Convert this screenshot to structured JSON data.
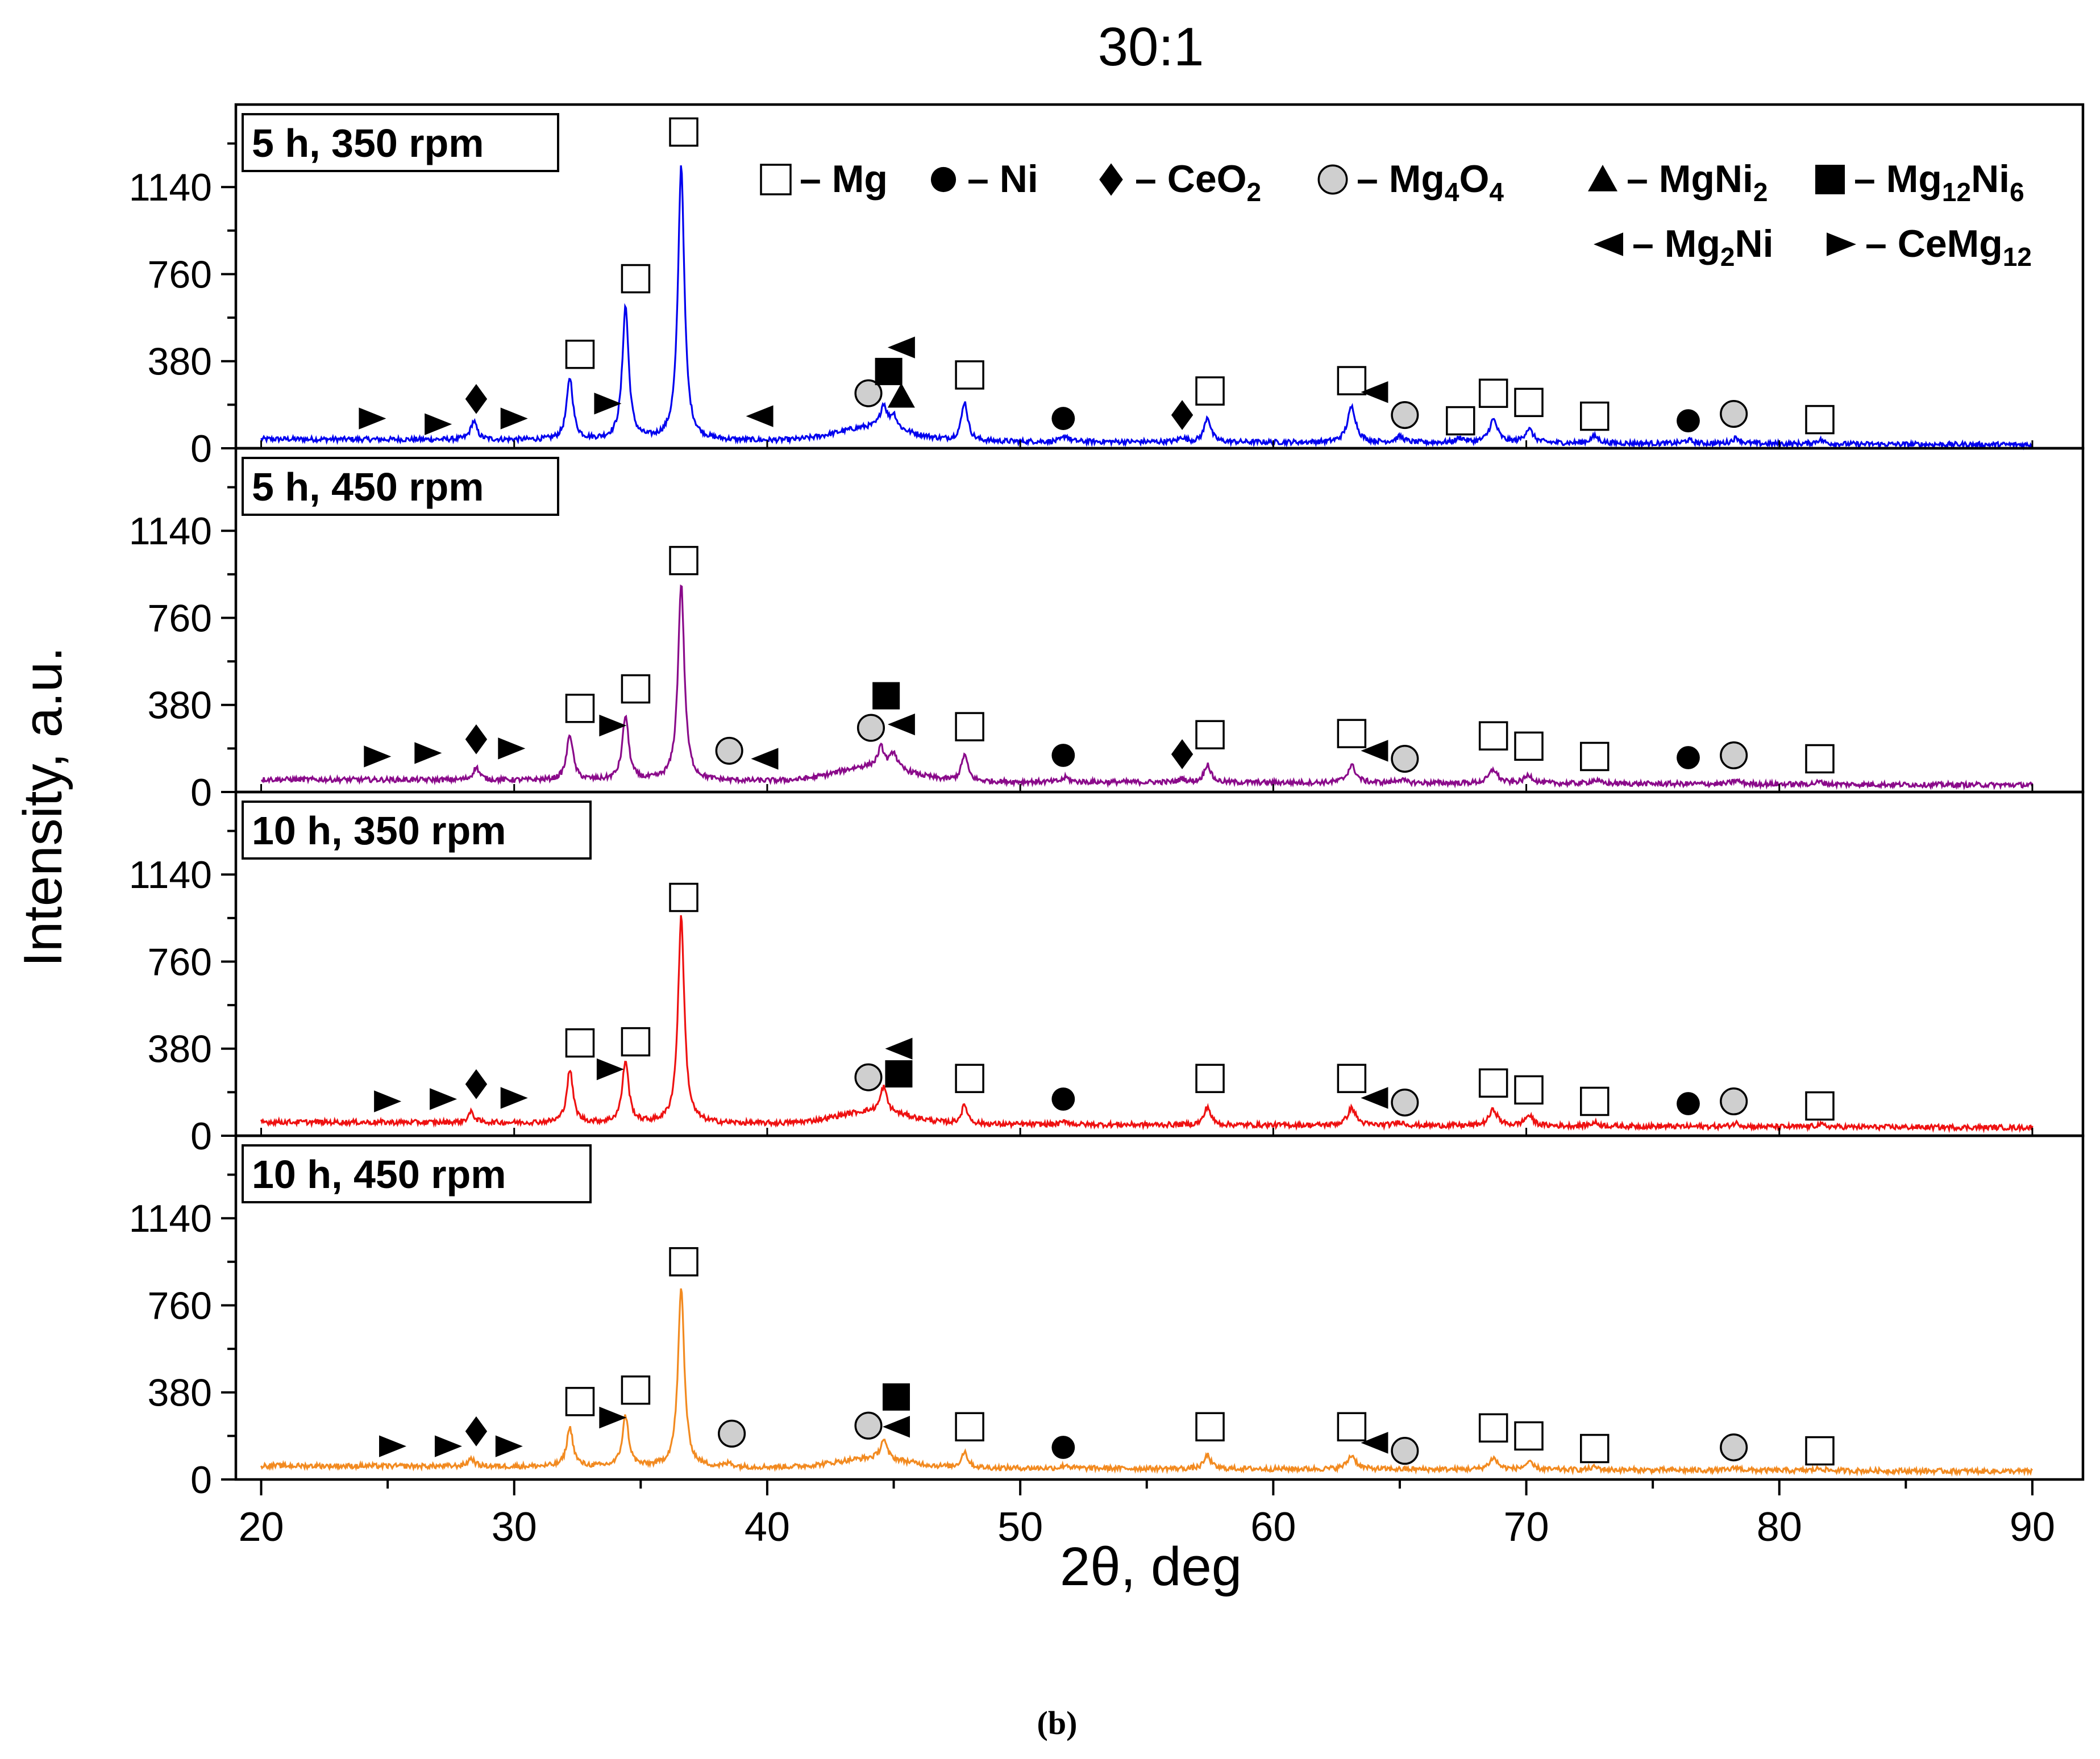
{
  "chart_data": {
    "type": "line",
    "title": "30:1",
    "caption": "(b)",
    "xlabel": "2θ, deg",
    "ylabel": "Intensity, a.u.",
    "xlim": [
      19,
      92
    ],
    "ylim": [
      0,
      1500
    ],
    "x_ticks": [
      20,
      30,
      40,
      50,
      60,
      70,
      80,
      90
    ],
    "y_ticks": [
      0,
      380,
      760,
      1140
    ],
    "legend": {
      "placement": "top-right",
      "row1": [
        {
          "marker": "open-square",
          "label": "– Mg"
        },
        {
          "marker": "circle",
          "label": "– Ni"
        },
        {
          "marker": "diamond",
          "label": "– CeO",
          "sub": "2"
        },
        {
          "marker": "grey-circle",
          "label": "– Mg",
          "sub": "4",
          "label2": "O",
          "sub2": "4"
        },
        {
          "marker": "triangle-up",
          "label": "– MgNi",
          "sub": "2"
        },
        {
          "marker": "square",
          "label": "– Mg",
          "sub": "12",
          "label2": "Ni",
          "sub2": "6"
        }
      ],
      "row2": [
        {
          "marker": "triangle-left",
          "label": "– Mg",
          "sub": "2",
          "label2": "Ni"
        },
        {
          "marker": "triangle-right",
          "label": "– CeMg",
          "sub": "12"
        }
      ]
    },
    "series": [
      {
        "name": "5 h, 350 rpm",
        "color": "#0000ee",
        "baseline": 40,
        "peaks": [
          [
            28.4,
            80
          ],
          [
            32.2,
            270
          ],
          [
            34.4,
            580
          ],
          [
            36.6,
            1200
          ],
          [
            44.6,
            100
          ],
          [
            45.0,
            60
          ],
          [
            47.8,
            170
          ],
          [
            51.8,
            25
          ],
          [
            56.4,
            20
          ],
          [
            57.4,
            110
          ],
          [
            63.1,
            155
          ],
          [
            65.0,
            25
          ],
          [
            67.4,
            20
          ],
          [
            68.7,
            100
          ],
          [
            70.1,
            60
          ],
          [
            72.7,
            30
          ],
          [
            76.4,
            15
          ],
          [
            78.3,
            25
          ],
          [
            81.6,
            18
          ]
        ],
        "bumps": [
          [
            44.2,
            2.0,
            60
          ]
        ],
        "markers": [
          {
            "x": 24.4,
            "y": 130,
            "type": "triangle-right"
          },
          {
            "x": 27.0,
            "y": 105,
            "type": "triangle-right"
          },
          {
            "x": 28.5,
            "y": 215,
            "type": "diamond"
          },
          {
            "x": 30.0,
            "y": 130,
            "type": "triangle-right"
          },
          {
            "x": 32.6,
            "y": 410,
            "type": "open-square"
          },
          {
            "x": 33.7,
            "y": 195,
            "type": "triangle-right"
          },
          {
            "x": 34.8,
            "y": 740,
            "type": "open-square"
          },
          {
            "x": 36.7,
            "y": 1380,
            "type": "open-square"
          },
          {
            "x": 39.7,
            "y": 140,
            "type": "triangle-left"
          },
          {
            "x": 44.0,
            "y": 240,
            "type": "grey-circle"
          },
          {
            "x": 44.8,
            "y": 335,
            "type": "square"
          },
          {
            "x": 45.3,
            "y": 440,
            "type": "triangle-left"
          },
          {
            "x": 45.3,
            "y": 225,
            "type": "triangle-up"
          },
          {
            "x": 48.0,
            "y": 320,
            "type": "open-square"
          },
          {
            "x": 51.7,
            "y": 130,
            "type": "circle"
          },
          {
            "x": 56.4,
            "y": 145,
            "type": "diamond"
          },
          {
            "x": 57.5,
            "y": 250,
            "type": "open-square"
          },
          {
            "x": 63.1,
            "y": 295,
            "type": "open-square"
          },
          {
            "x": 64.0,
            "y": 245,
            "type": "triangle-left"
          },
          {
            "x": 65.2,
            "y": 145,
            "type": "grey-circle"
          },
          {
            "x": 67.4,
            "y": 120,
            "type": "open-square"
          },
          {
            "x": 68.7,
            "y": 240,
            "type": "open-square"
          },
          {
            "x": 70.1,
            "y": 200,
            "type": "open-square"
          },
          {
            "x": 72.7,
            "y": 140,
            "type": "open-square"
          },
          {
            "x": 76.4,
            "y": 120,
            "type": "circle"
          },
          {
            "x": 78.2,
            "y": 150,
            "type": "grey-circle"
          },
          {
            "x": 81.6,
            "y": 125,
            "type": "open-square"
          }
        ]
      },
      {
        "name": "5 h, 450 rpm",
        "color": "#8a0a8a",
        "baseline": 55,
        "peaks": [
          [
            28.5,
            55
          ],
          [
            32.2,
            200
          ],
          [
            34.4,
            280
          ],
          [
            36.6,
            860
          ],
          [
            44.5,
            85
          ],
          [
            45.0,
            70
          ],
          [
            47.8,
            115
          ],
          [
            51.8,
            20
          ],
          [
            56.4,
            15
          ],
          [
            57.4,
            80
          ],
          [
            63.1,
            75
          ],
          [
            65.0,
            15
          ],
          [
            68.7,
            60
          ],
          [
            70.1,
            35
          ],
          [
            72.7,
            15
          ],
          [
            78.3,
            15
          ],
          [
            81.6,
            10
          ]
        ],
        "bumps": [
          [
            44.2,
            2.0,
            65
          ]
        ],
        "markers": [
          {
            "x": 24.6,
            "y": 155,
            "type": "triangle-right"
          },
          {
            "x": 26.6,
            "y": 170,
            "type": "triangle-right"
          },
          {
            "x": 28.5,
            "y": 230,
            "type": "diamond"
          },
          {
            "x": 29.9,
            "y": 190,
            "type": "triangle-right"
          },
          {
            "x": 32.6,
            "y": 365,
            "type": "open-square"
          },
          {
            "x": 33.9,
            "y": 290,
            "type": "triangle-right"
          },
          {
            "x": 34.8,
            "y": 450,
            "type": "open-square"
          },
          {
            "x": 36.7,
            "y": 1010,
            "type": "open-square"
          },
          {
            "x": 38.5,
            "y": 180,
            "type": "grey-circle"
          },
          {
            "x": 39.9,
            "y": 145,
            "type": "triangle-left"
          },
          {
            "x": 44.1,
            "y": 280,
            "type": "grey-circle"
          },
          {
            "x": 44.7,
            "y": 420,
            "type": "square"
          },
          {
            "x": 45.3,
            "y": 295,
            "type": "triangle-left"
          },
          {
            "x": 48.0,
            "y": 285,
            "type": "open-square"
          },
          {
            "x": 51.7,
            "y": 160,
            "type": "circle"
          },
          {
            "x": 56.4,
            "y": 165,
            "type": "diamond"
          },
          {
            "x": 57.5,
            "y": 250,
            "type": "open-square"
          },
          {
            "x": 63.1,
            "y": 255,
            "type": "open-square"
          },
          {
            "x": 64.0,
            "y": 180,
            "type": "triangle-left"
          },
          {
            "x": 65.2,
            "y": 145,
            "type": "grey-circle"
          },
          {
            "x": 68.7,
            "y": 245,
            "type": "open-square"
          },
          {
            "x": 70.1,
            "y": 200,
            "type": "open-square"
          },
          {
            "x": 72.7,
            "y": 155,
            "type": "open-square"
          },
          {
            "x": 76.4,
            "y": 150,
            "type": "circle"
          },
          {
            "x": 78.2,
            "y": 160,
            "type": "grey-circle"
          },
          {
            "x": 81.6,
            "y": 145,
            "type": "open-square"
          }
        ]
      },
      {
        "name": "10 h, 350 rpm",
        "color": "#ee1111",
        "baseline": 60,
        "peaks": [
          [
            28.3,
            45
          ],
          [
            32.2,
            230
          ],
          [
            34.4,
            270
          ],
          [
            36.6,
            900
          ],
          [
            44.6,
            110
          ],
          [
            47.8,
            80
          ],
          [
            51.8,
            15
          ],
          [
            57.4,
            80
          ],
          [
            63.1,
            75
          ],
          [
            65.0,
            15
          ],
          [
            68.7,
            70
          ],
          [
            70.1,
            45
          ],
          [
            72.7,
            15
          ],
          [
            78.3,
            15
          ],
          [
            81.6,
            10
          ]
        ],
        "bumps": [
          [
            44.2,
            2.0,
            55
          ]
        ],
        "markers": [
          {
            "x": 25.0,
            "y": 150,
            "type": "triangle-right"
          },
          {
            "x": 27.2,
            "y": 160,
            "type": "triangle-right"
          },
          {
            "x": 28.5,
            "y": 225,
            "type": "diamond"
          },
          {
            "x": 30.0,
            "y": 165,
            "type": "triangle-right"
          },
          {
            "x": 32.6,
            "y": 405,
            "type": "open-square"
          },
          {
            "x": 33.8,
            "y": 290,
            "type": "triangle-right"
          },
          {
            "x": 34.8,
            "y": 410,
            "type": "open-square"
          },
          {
            "x": 36.7,
            "y": 1040,
            "type": "open-square"
          },
          {
            "x": 44.0,
            "y": 255,
            "type": "grey-circle"
          },
          {
            "x": 45.2,
            "y": 270,
            "type": "square"
          },
          {
            "x": 45.2,
            "y": 380,
            "type": "triangle-left"
          },
          {
            "x": 48.0,
            "y": 250,
            "type": "open-square"
          },
          {
            "x": 51.7,
            "y": 160,
            "type": "circle"
          },
          {
            "x": 57.5,
            "y": 250,
            "type": "open-square"
          },
          {
            "x": 63.1,
            "y": 250,
            "type": "open-square"
          },
          {
            "x": 64.0,
            "y": 165,
            "type": "triangle-left"
          },
          {
            "x": 65.2,
            "y": 145,
            "type": "grey-circle"
          },
          {
            "x": 68.7,
            "y": 230,
            "type": "open-square"
          },
          {
            "x": 70.1,
            "y": 200,
            "type": "open-square"
          },
          {
            "x": 72.7,
            "y": 150,
            "type": "open-square"
          },
          {
            "x": 76.4,
            "y": 140,
            "type": "circle"
          },
          {
            "x": 78.2,
            "y": 150,
            "type": "grey-circle"
          },
          {
            "x": 81.6,
            "y": 130,
            "type": "open-square"
          }
        ]
      },
      {
        "name": "10 h, 450 rpm",
        "color": "#f28a20",
        "baseline": 60,
        "peaks": [
          [
            28.3,
            35
          ],
          [
            32.2,
            170
          ],
          [
            34.4,
            220
          ],
          [
            36.6,
            780
          ],
          [
            38.5,
            15
          ],
          [
            44.6,
            85
          ],
          [
            47.8,
            70
          ],
          [
            51.8,
            15
          ],
          [
            57.4,
            60
          ],
          [
            63.1,
            60
          ],
          [
            68.7,
            50
          ],
          [
            70.1,
            30
          ],
          [
            72.7,
            12
          ],
          [
            78.3,
            12
          ],
          [
            81.6,
            10
          ]
        ],
        "bumps": [
          [
            44.2,
            2.0,
            40
          ]
        ],
        "markers": [
          {
            "x": 25.2,
            "y": 145,
            "type": "triangle-right"
          },
          {
            "x": 27.4,
            "y": 145,
            "type": "triangle-right"
          },
          {
            "x": 28.5,
            "y": 210,
            "type": "diamond"
          },
          {
            "x": 29.8,
            "y": 145,
            "type": "triangle-right"
          },
          {
            "x": 32.6,
            "y": 340,
            "type": "open-square"
          },
          {
            "x": 33.9,
            "y": 270,
            "type": "triangle-right"
          },
          {
            "x": 34.8,
            "y": 390,
            "type": "open-square"
          },
          {
            "x": 36.7,
            "y": 950,
            "type": "open-square"
          },
          {
            "x": 38.6,
            "y": 200,
            "type": "grey-circle"
          },
          {
            "x": 44.0,
            "y": 235,
            "type": "grey-circle"
          },
          {
            "x": 45.1,
            "y": 360,
            "type": "square"
          },
          {
            "x": 45.1,
            "y": 230,
            "type": "triangle-left"
          },
          {
            "x": 48.0,
            "y": 230,
            "type": "open-square"
          },
          {
            "x": 51.7,
            "y": 140,
            "type": "circle"
          },
          {
            "x": 57.5,
            "y": 230,
            "type": "open-square"
          },
          {
            "x": 63.1,
            "y": 230,
            "type": "open-square"
          },
          {
            "x": 64.0,
            "y": 160,
            "type": "triangle-left"
          },
          {
            "x": 65.2,
            "y": 125,
            "type": "grey-circle"
          },
          {
            "x": 68.7,
            "y": 225,
            "type": "open-square"
          },
          {
            "x": 70.1,
            "y": 190,
            "type": "open-square"
          },
          {
            "x": 72.7,
            "y": 135,
            "type": "open-square"
          },
          {
            "x": 78.2,
            "y": 140,
            "type": "grey-circle"
          },
          {
            "x": 81.6,
            "y": 125,
            "type": "open-square"
          }
        ]
      }
    ]
  }
}
